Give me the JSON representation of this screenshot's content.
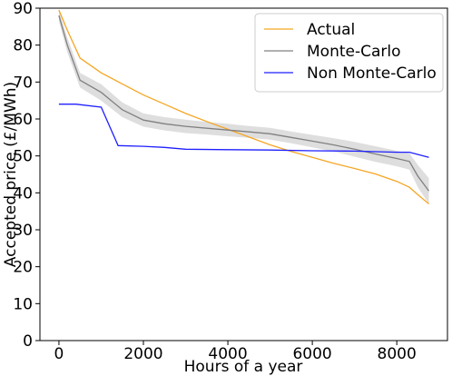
{
  "chart_data": {
    "type": "line",
    "xlabel": "Hours of a year",
    "ylabel": "Accepted price (£/MWh)",
    "xlim": [
      -450,
      9200
    ],
    "ylim": [
      0,
      90
    ],
    "x_ticks": [
      0,
      2000,
      4000,
      6000,
      8000
    ],
    "y_ticks": [
      0,
      10,
      20,
      30,
      40,
      50,
      60,
      70,
      80,
      90
    ],
    "legend_position": "top-right",
    "grid": false,
    "series": [
      {
        "name": "Actual",
        "color": "#f5a623",
        "points": [
          [
            0,
            89.5
          ],
          [
            200,
            84
          ],
          [
            500,
            76.5
          ],
          [
            1000,
            72.5
          ],
          [
            1500,
            69.5
          ],
          [
            2000,
            66.5
          ],
          [
            2500,
            64
          ],
          [
            3000,
            61.5
          ],
          [
            3500,
            59.3
          ],
          [
            4000,
            57.2
          ],
          [
            4500,
            55.1
          ],
          [
            5000,
            53
          ],
          [
            5500,
            51.2
          ],
          [
            6000,
            49.6
          ],
          [
            6500,
            48
          ],
          [
            7000,
            46.6
          ],
          [
            7500,
            45.1
          ],
          [
            8000,
            43.1
          ],
          [
            8300,
            41.5
          ],
          [
            8500,
            39.5
          ],
          [
            8760,
            37
          ]
        ]
      },
      {
        "name": "Monte-Carlo",
        "color": "#808080",
        "points": [
          [
            0,
            88
          ],
          [
            200,
            80
          ],
          [
            500,
            70.5
          ],
          [
            1000,
            67.2
          ],
          [
            1500,
            62.5
          ],
          [
            2000,
            59.7
          ],
          [
            2500,
            58.7
          ],
          [
            3000,
            58
          ],
          [
            3500,
            57.5
          ],
          [
            4000,
            57
          ],
          [
            4500,
            56.5
          ],
          [
            5000,
            56
          ],
          [
            5500,
            55
          ],
          [
            6000,
            54
          ],
          [
            6500,
            53
          ],
          [
            7000,
            51.8
          ],
          [
            7500,
            50.5
          ],
          [
            8000,
            49.3
          ],
          [
            8300,
            48.5
          ],
          [
            8500,
            44.5
          ],
          [
            8760,
            40.5
          ]
        ],
        "band_upper": [
          89.5,
          82,
          72.5,
          69.4,
          64.5,
          61.5,
          60.5,
          59.8,
          59.2,
          58.7,
          58.1,
          57.6,
          56.6,
          55.7,
          54.8,
          53.8,
          52.6,
          51.4,
          50.7,
          47.5,
          44
        ],
        "band_lower": [
          86.5,
          78,
          68.5,
          65,
          60.5,
          57.9,
          56.9,
          56.2,
          55.8,
          55.3,
          54.9,
          54.4,
          53.4,
          52.3,
          51.2,
          49.8,
          48.4,
          47.2,
          46.3,
          41.5,
          37
        ]
      },
      {
        "name": "Non Monte-Carlo",
        "color": "#1f1fff",
        "points": [
          [
            0,
            64
          ],
          [
            400,
            64
          ],
          [
            1000,
            63.2
          ],
          [
            1400,
            52.8
          ],
          [
            2000,
            52.6
          ],
          [
            2500,
            52.3
          ],
          [
            3000,
            51.8
          ],
          [
            4000,
            51.7
          ],
          [
            5000,
            51.6
          ],
          [
            6000,
            51.4
          ],
          [
            7000,
            51.3
          ],
          [
            8000,
            51
          ],
          [
            8300,
            51
          ],
          [
            8760,
            49.6
          ]
        ]
      }
    ]
  }
}
